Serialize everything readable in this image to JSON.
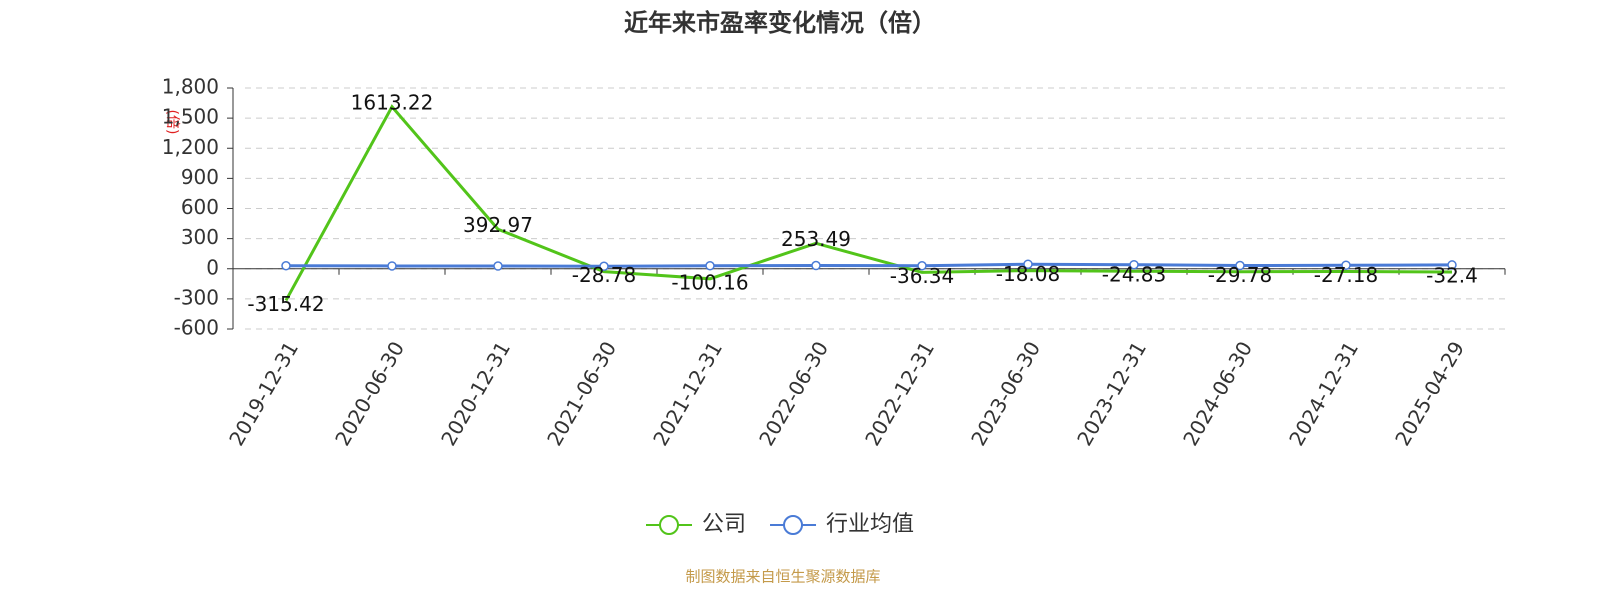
{
  "chart_data": {
    "type": "line",
    "title": "近年来市盈率变化情况（倍）",
    "y_label": "(倍)",
    "source": "制图数据来自恒生聚源数据库",
    "categories": [
      "2019-12-31",
      "2020-06-30",
      "2020-12-31",
      "2021-06-30",
      "2021-12-31",
      "2022-06-30",
      "2022-12-31",
      "2023-06-30",
      "2023-12-31",
      "2024-06-30",
      "2024-12-31",
      "2025-04-29"
    ],
    "series": [
      {
        "name": "公司",
        "color": "#52c41a",
        "markers": false,
        "data_labels": true,
        "values": [
          -315.42,
          1613.22,
          392.97,
          -28.78,
          -100.16,
          253.49,
          -36.34,
          -18.08,
          -24.83,
          -29.78,
          -27.18,
          -32.4
        ]
      },
      {
        "name": "行业均值",
        "color": "#4a7bd6",
        "markers": true,
        "data_labels": false,
        "values": [
          30,
          28,
          27,
          25,
          30,
          32,
          30,
          45,
          40,
          32,
          35,
          38
        ]
      }
    ],
    "ylim": [
      -600,
      1800
    ],
    "yticks": [
      -600,
      -300,
      0,
      300,
      600,
      900,
      {
        "value": 1200,
        "label": "1,200"
      },
      {
        "value": 1500,
        "label": "1,500"
      },
      {
        "value": 1800,
        "label": "1,800"
      }
    ],
    "grid": true,
    "legend": "bottom"
  }
}
